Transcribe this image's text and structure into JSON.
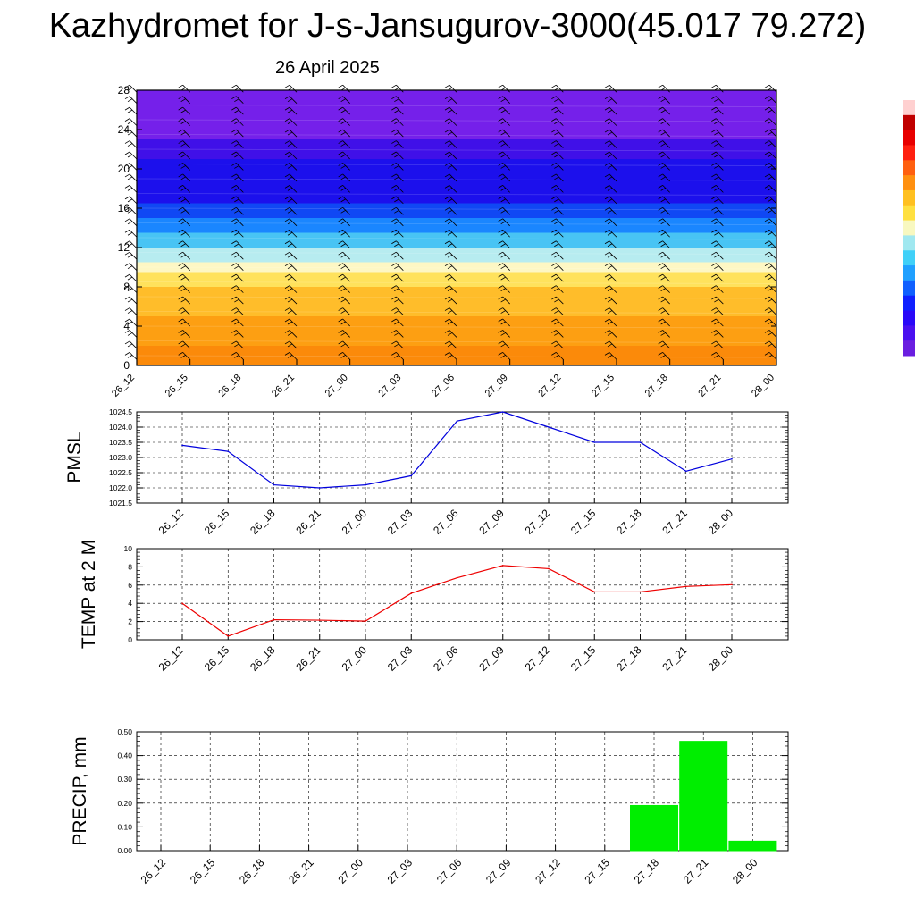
{
  "header": {
    "title": "Kazhydromet for J-s-Jansugurov-3000(45.017 79.272)",
    "date": "26 April 2025"
  },
  "chart_data": [
    {
      "type": "heatmap",
      "x_ticks": [
        "26_12",
        "26_15",
        "26_18",
        "26_21",
        "27_00",
        "27_03",
        "27_06",
        "27_09",
        "27_12",
        "27_15",
        "27_18",
        "27_21",
        "28_00"
      ],
      "y_ticks": [
        "0",
        "4",
        "8",
        "12",
        "16",
        "20",
        "24",
        "28"
      ],
      "ylim": [
        0,
        28
      ],
      "colorbar_colors": [
        "#6a1ee0",
        "#4a10f0",
        "#2a08f8",
        "#1020ff",
        "#1060ff",
        "#20a0ff",
        "#40d0f8",
        "#a0e8f0",
        "#f8f8c0",
        "#ffe040",
        "#ffc020",
        "#ff9010",
        "#ff6010",
        "#ff2010",
        "#e80000",
        "#c00000",
        "#ffd0d0"
      ],
      "bands": [
        {
          "from": 0,
          "to": 2,
          "color": "#fb8a0a"
        },
        {
          "from": 2,
          "to": 5,
          "color": "#fd9f12"
        },
        {
          "from": 5,
          "to": 8,
          "color": "#ffbd2a"
        },
        {
          "from": 8,
          "to": 9.5,
          "color": "#ffe25c"
        },
        {
          "from": 9.5,
          "to": 10.5,
          "color": "#fdf7c4"
        },
        {
          "from": 10.5,
          "to": 12,
          "color": "#b7ecf0"
        },
        {
          "from": 12,
          "to": 13.5,
          "color": "#48c4f4"
        },
        {
          "from": 13.5,
          "to": 15,
          "color": "#1a86ff"
        },
        {
          "from": 15,
          "to": 16.5,
          "color": "#1048f4"
        },
        {
          "from": 16.5,
          "to": 21,
          "color": "#1c10ec"
        },
        {
          "from": 21,
          "to": 23,
          "color": "#4010e8"
        },
        {
          "from": 23,
          "to": 28,
          "color": "#7520ea"
        }
      ],
      "grid": false
    },
    {
      "type": "line",
      "ylabel": "PMSL",
      "x": [
        "26_12",
        "26_15",
        "26_18",
        "26_21",
        "27_00",
        "27_03",
        "27_06",
        "27_09",
        "27_12",
        "27_15",
        "27_18",
        "27_21",
        "28_00"
      ],
      "values": [
        1023.4,
        1023.2,
        1022.1,
        1022.0,
        1022.1,
        1022.4,
        1024.2,
        1024.5,
        1024.0,
        1023.5,
        1023.5,
        1022.55,
        1022.95
      ],
      "ylim": [
        1021.5,
        1024.5
      ],
      "y_ticks": [
        "1021.5",
        "1022.0",
        "1022.5",
        "1023.0",
        "1023.5",
        "1024.0",
        "1024.5"
      ],
      "color": "#0000dd",
      "grid": true
    },
    {
      "type": "line",
      "ylabel": "TEMP at 2 M",
      "x": [
        "26_12",
        "26_15",
        "26_18",
        "26_21",
        "27_00",
        "27_03",
        "27_06",
        "27_09",
        "27_12",
        "27_15",
        "27_18",
        "27_21",
        "28_00"
      ],
      "values": [
        4.0,
        0.4,
        2.2,
        2.15,
        2.05,
        5.1,
        6.8,
        8.15,
        7.8,
        5.25,
        5.25,
        5.85,
        6.05
      ],
      "ylim": [
        0,
        10
      ],
      "y_ticks": [
        "0",
        "2",
        "4",
        "6",
        "8",
        "10"
      ],
      "color": "#ee0000",
      "grid": true
    },
    {
      "type": "bar",
      "ylabel": "PRECIP, mm",
      "categories": [
        "26_12",
        "26_15",
        "26_18",
        "26_21",
        "27_00",
        "27_03",
        "27_06",
        "27_09",
        "27_12",
        "27_15",
        "27_18",
        "27_21",
        "28_00"
      ],
      "values": [
        0,
        0,
        0,
        0,
        0,
        0,
        0,
        0,
        0,
        0,
        0.19,
        0.46,
        0.04
      ],
      "ylim": [
        0,
        0.5
      ],
      "y_ticks": [
        "0.00",
        "0.10",
        "0.20",
        "0.30",
        "0.40",
        "0.50"
      ],
      "color": "#00ee00",
      "grid": true
    }
  ]
}
